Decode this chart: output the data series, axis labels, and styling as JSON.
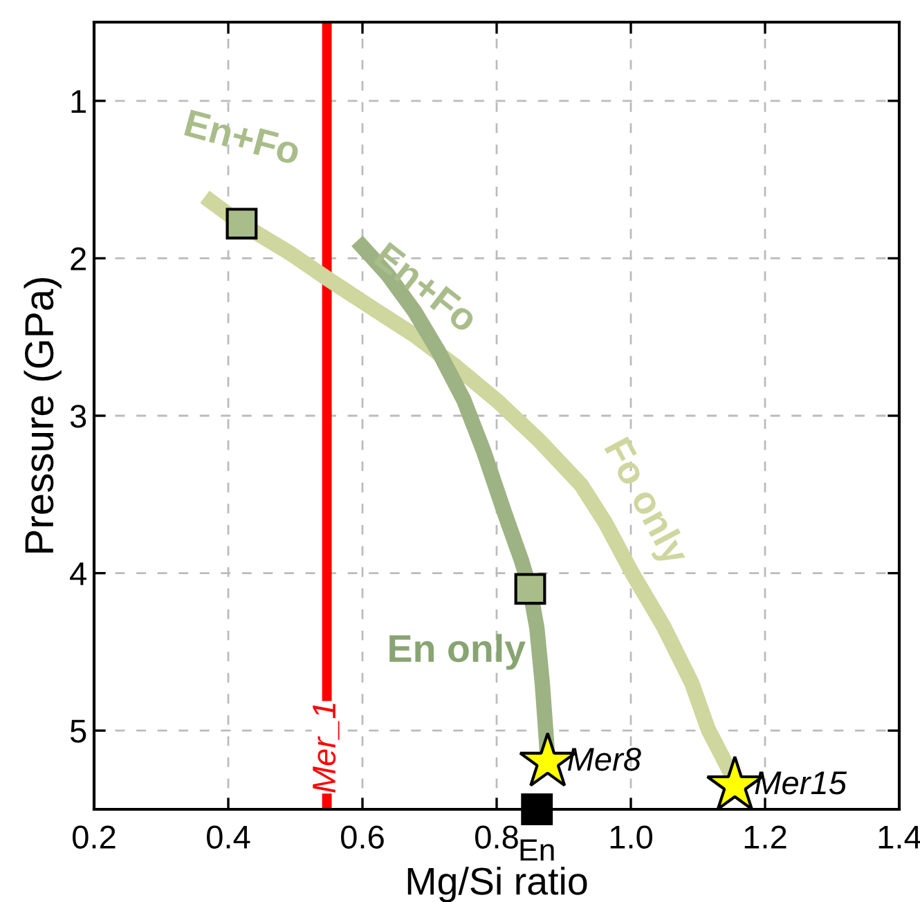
{
  "chart_data": {
    "type": "line",
    "xlabel": "Mg/Si ratio",
    "ylabel": "Pressure (GPa)",
    "xlim": [
      0.2,
      1.4
    ],
    "xticks": [
      0.2,
      0.4,
      0.6,
      0.8,
      {
        "value": 1.0,
        "label": "1.0"
      },
      1.2,
      1.4
    ],
    "ylim": [
      5.5,
      0.5
    ],
    "yticks": [
      1,
      2,
      3,
      4,
      5
    ],
    "grid": true,
    "legend": false,
    "series": [
      {
        "color": "#cfd69e",
        "x": [
          0.365,
          0.419,
          0.493,
          0.548,
          0.616,
          0.678,
          0.74,
          0.802,
          0.864,
          0.926,
          0.962,
          1.002,
          1.049,
          1.091,
          1.115,
          1.155
        ],
        "values": [
          1.61,
          1.78,
          1.97,
          2.13,
          2.32,
          2.49,
          2.69,
          2.91,
          3.16,
          3.44,
          3.68,
          4.0,
          4.34,
          4.7,
          4.99,
          5.32
        ]
      },
      {
        "color": "#9db383",
        "x": [
          0.592,
          0.637,
          0.678,
          0.713,
          0.751,
          0.781,
          0.812,
          0.837,
          0.849,
          0.86,
          0.868,
          0.874,
          0.876
        ],
        "values": [
          1.89,
          2.1,
          2.34,
          2.59,
          2.9,
          3.23,
          3.62,
          3.92,
          4.09,
          4.35,
          4.7,
          5.05,
          5.2
        ]
      },
      {
        "type": "scatter",
        "marker": "square",
        "color": "#a9bd8a",
        "x": [
          0.42,
          0.85
        ],
        "values": [
          1.78,
          4.1
        ]
      },
      {
        "type": "scatter",
        "marker": "square",
        "color": "#000000",
        "x": [
          0.86
        ],
        "values": [
          5.5
        ]
      },
      {
        "type": "scatter",
        "marker": "star",
        "color": "#ffff00",
        "name": "Mer8",
        "x": [
          0.876
        ],
        "values": [
          5.2
        ]
      },
      {
        "type": "scatter",
        "marker": "star",
        "color": "#ffff00",
        "name": "Mer15",
        "x": [
          1.155
        ],
        "values": [
          5.35
        ]
      }
    ],
    "ref_lines": [
      {
        "axis": "x",
        "value": 0.547,
        "label": "Mer_1",
        "color": "#ff0000"
      }
    ],
    "annotations": [
      "En+Fo",
      "En+Fo",
      "Fo only",
      "En only",
      "En"
    ]
  }
}
